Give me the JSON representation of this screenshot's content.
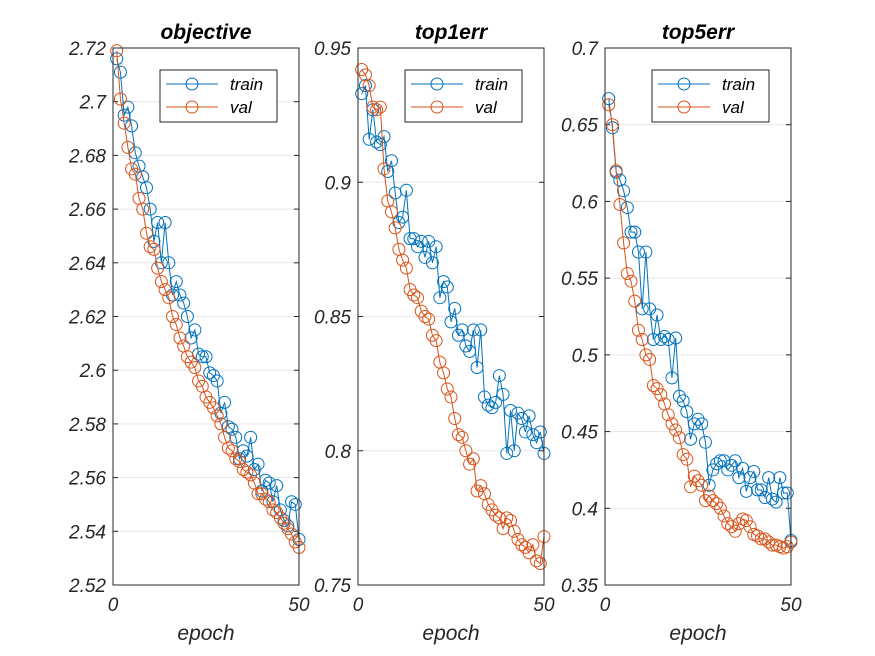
{
  "chart_data": [
    {
      "type": "line",
      "title": "objective",
      "xlabel": "epoch",
      "ylabel": "",
      "xlim": [
        0,
        50
      ],
      "ylim": [
        2.52,
        2.72
      ],
      "xticks": [
        0,
        50
      ],
      "yticks": [
        2.52,
        2.54,
        2.56,
        2.58,
        2.6,
        2.62,
        2.64,
        2.66,
        2.68,
        2.7,
        2.72
      ],
      "ytick_labels": [
        "2.52",
        "2.54",
        "2.56",
        "2.58",
        "2.6",
        "2.62",
        "2.64",
        "2.66",
        "2.68",
        "2.7",
        "2.72"
      ],
      "grid": "horizontal",
      "legend_position": "top-right",
      "series": [
        {
          "name": "train",
          "color": "#0072BD",
          "x": [
            1,
            2,
            3,
            4,
            5,
            6,
            7,
            8,
            9,
            10,
            11,
            12,
            13,
            14,
            15,
            16,
            17,
            18,
            19,
            20,
            21,
            22,
            23,
            24,
            25,
            26,
            27,
            28,
            29,
            30,
            31,
            32,
            33,
            34,
            35,
            36,
            37,
            38,
            39,
            40,
            41,
            42,
            43,
            44,
            45,
            46,
            47,
            48,
            49,
            50
          ],
          "values": [
            2.716,
            2.711,
            2.695,
            2.698,
            2.691,
            2.681,
            2.676,
            2.672,
            2.668,
            2.66,
            2.648,
            2.655,
            2.64,
            2.655,
            2.64,
            2.628,
            2.633,
            2.628,
            2.625,
            2.62,
            2.612,
            2.615,
            2.606,
            2.605,
            2.605,
            2.599,
            2.598,
            2.596,
            2.584,
            2.588,
            2.579,
            2.578,
            2.575,
            2.567,
            2.57,
            2.568,
            2.575,
            2.563,
            2.565,
            2.555,
            2.559,
            2.558,
            2.551,
            2.557,
            2.548,
            2.544,
            2.542,
            2.551,
            2.55,
            2.537
          ]
        },
        {
          "name": "val",
          "color": "#D95319",
          "x": [
            1,
            2,
            3,
            4,
            5,
            6,
            7,
            8,
            9,
            10,
            11,
            12,
            13,
            14,
            15,
            16,
            17,
            18,
            19,
            20,
            21,
            22,
            23,
            24,
            25,
            26,
            27,
            28,
            29,
            30,
            31,
            32,
            33,
            34,
            35,
            36,
            37,
            38,
            39,
            40,
            41,
            42,
            43,
            44,
            45,
            46,
            47,
            48,
            49,
            50
          ],
          "values": [
            2.719,
            2.701,
            2.692,
            2.683,
            2.675,
            2.673,
            2.664,
            2.66,
            2.651,
            2.646,
            2.645,
            2.638,
            2.633,
            2.63,
            2.627,
            2.62,
            2.617,
            2.612,
            2.609,
            2.605,
            2.603,
            2.601,
            2.596,
            2.594,
            2.59,
            2.588,
            2.586,
            2.583,
            2.58,
            2.575,
            2.571,
            2.57,
            2.567,
            2.566,
            2.563,
            2.562,
            2.561,
            2.558,
            2.554,
            2.554,
            2.552,
            2.551,
            2.548,
            2.547,
            2.545,
            2.543,
            2.541,
            2.539,
            2.536,
            2.534
          ]
        }
      ]
    },
    {
      "type": "line",
      "title": "top1err",
      "xlabel": "epoch",
      "ylabel": "",
      "xlim": [
        0,
        50
      ],
      "ylim": [
        0.75,
        0.95
      ],
      "xticks": [
        0,
        50
      ],
      "yticks": [
        0.75,
        0.8,
        0.85,
        0.9,
        0.95
      ],
      "ytick_labels": [
        "0.75",
        "0.8",
        "0.85",
        "0.9",
        "0.95"
      ],
      "grid": "horizontal",
      "legend_position": "top-right",
      "series": [
        {
          "name": "train",
          "color": "#0072BD",
          "x": [
            1,
            2,
            3,
            4,
            5,
            6,
            7,
            8,
            9,
            10,
            11,
            12,
            13,
            14,
            15,
            16,
            17,
            18,
            19,
            20,
            21,
            22,
            23,
            24,
            25,
            26,
            27,
            28,
            29,
            30,
            31,
            32,
            33,
            34,
            35,
            36,
            37,
            38,
            39,
            40,
            41,
            42,
            43,
            44,
            45,
            46,
            47,
            48,
            49,
            50
          ],
          "values": [
            0.933,
            0.936,
            0.916,
            0.927,
            0.915,
            0.914,
            0.917,
            0.904,
            0.908,
            0.896,
            0.885,
            0.887,
            0.897,
            0.879,
            0.879,
            0.876,
            0.878,
            0.872,
            0.878,
            0.87,
            0.876,
            0.857,
            0.863,
            0.861,
            0.848,
            0.853,
            0.843,
            0.845,
            0.839,
            0.837,
            0.845,
            0.831,
            0.845,
            0.82,
            0.817,
            0.816,
            0.818,
            0.828,
            0.821,
            0.799,
            0.815,
            0.8,
            0.814,
            0.812,
            0.807,
            0.813,
            0.806,
            0.803,
            0.807,
            0.799
          ]
        },
        {
          "name": "val",
          "color": "#D95319",
          "x": [
            1,
            2,
            3,
            4,
            5,
            6,
            7,
            8,
            9,
            10,
            11,
            12,
            13,
            14,
            15,
            16,
            17,
            18,
            19,
            20,
            21,
            22,
            23,
            24,
            25,
            26,
            27,
            28,
            29,
            30,
            31,
            32,
            33,
            34,
            35,
            36,
            37,
            38,
            39,
            40,
            41,
            42,
            43,
            44,
            45,
            46,
            47,
            48,
            49,
            50
          ],
          "values": [
            0.942,
            0.94,
            0.936,
            0.928,
            0.927,
            0.928,
            0.905,
            0.893,
            0.889,
            0.883,
            0.875,
            0.871,
            0.868,
            0.86,
            0.858,
            0.857,
            0.852,
            0.85,
            0.849,
            0.843,
            0.841,
            0.833,
            0.829,
            0.823,
            0.82,
            0.812,
            0.806,
            0.805,
            0.8,
            0.795,
            0.797,
            0.785,
            0.787,
            0.784,
            0.78,
            0.778,
            0.776,
            0.775,
            0.771,
            0.775,
            0.774,
            0.77,
            0.767,
            0.765,
            0.764,
            0.762,
            0.765,
            0.759,
            0.758,
            0.768
          ]
        }
      ]
    },
    {
      "type": "line",
      "title": "top5err",
      "xlabel": "epoch",
      "ylabel": "",
      "xlim": [
        0,
        50
      ],
      "ylim": [
        0.35,
        0.7
      ],
      "xticks": [
        0,
        50
      ],
      "yticks": [
        0.35,
        0.4,
        0.45,
        0.5,
        0.55,
        0.6,
        0.65,
        0.7
      ],
      "ytick_labels": [
        "0.35",
        "0.4",
        "0.45",
        "0.5",
        "0.55",
        "0.6",
        "0.65",
        "0.7"
      ],
      "grid": "horizontal",
      "legend_position": "top-right",
      "series": [
        {
          "name": "train",
          "color": "#0072BD",
          "x": [
            1,
            2,
            3,
            4,
            5,
            6,
            7,
            8,
            9,
            10,
            11,
            12,
            13,
            14,
            15,
            16,
            17,
            18,
            19,
            20,
            21,
            22,
            23,
            24,
            25,
            26,
            27,
            28,
            29,
            30,
            31,
            32,
            33,
            34,
            35,
            36,
            37,
            38,
            39,
            40,
            41,
            42,
            43,
            44,
            45,
            46,
            47,
            48,
            49,
            50
          ],
          "values": [
            0.667,
            0.648,
            0.619,
            0.614,
            0.607,
            0.596,
            0.58,
            0.58,
            0.567,
            0.53,
            0.567,
            0.53,
            0.51,
            0.526,
            0.51,
            0.512,
            0.51,
            0.485,
            0.511,
            0.473,
            0.47,
            0.463,
            0.445,
            0.455,
            0.458,
            0.455,
            0.443,
            0.415,
            0.425,
            0.429,
            0.431,
            0.431,
            0.425,
            0.428,
            0.431,
            0.42,
            0.426,
            0.411,
            0.42,
            0.424,
            0.412,
            0.412,
            0.407,
            0.42,
            0.406,
            0.404,
            0.42,
            0.41,
            0.41,
            0.379
          ]
        },
        {
          "name": "val",
          "color": "#D95319",
          "x": [
            1,
            2,
            3,
            4,
            5,
            6,
            7,
            8,
            9,
            10,
            11,
            12,
            13,
            14,
            15,
            16,
            17,
            18,
            19,
            20,
            21,
            22,
            23,
            24,
            25,
            26,
            27,
            28,
            29,
            30,
            31,
            32,
            33,
            34,
            35,
            36,
            37,
            38,
            39,
            40,
            41,
            42,
            43,
            44,
            45,
            46,
            47,
            48,
            49,
            50
          ],
          "values": [
            0.663,
            0.65,
            0.62,
            0.598,
            0.573,
            0.553,
            0.548,
            0.535,
            0.516,
            0.51,
            0.5,
            0.497,
            0.48,
            0.478,
            0.474,
            0.468,
            0.461,
            0.455,
            0.451,
            0.446,
            0.435,
            0.432,
            0.414,
            0.421,
            0.418,
            0.415,
            0.405,
            0.408,
            0.405,
            0.403,
            0.4,
            0.395,
            0.39,
            0.388,
            0.385,
            0.39,
            0.393,
            0.392,
            0.388,
            0.383,
            0.382,
            0.38,
            0.38,
            0.378,
            0.376,
            0.376,
            0.375,
            0.374,
            0.375,
            0.378
          ]
        }
      ]
    }
  ]
}
